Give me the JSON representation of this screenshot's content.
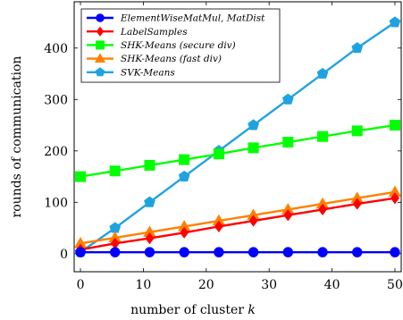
{
  "chart_data": {
    "type": "line",
    "xlabel": "number of cluster",
    "xlabel_var": "k",
    "ylabel": "rounds of communication",
    "xlim": [
      -1,
      51
    ],
    "ylim": [
      -35,
      490
    ],
    "xticks": [
      0,
      10,
      20,
      30,
      40,
      50
    ],
    "yticks": [
      0,
      100,
      200,
      300,
      400
    ],
    "legend_position": "top-left",
    "x": [
      0,
      5.5,
      11,
      16.5,
      22,
      27.5,
      33,
      38.5,
      44,
      50
    ],
    "series": [
      {
        "name": "ElementWiseMatMul, MatDist",
        "color": "#0000ff",
        "marker": "circle",
        "values": [
          3,
          3,
          3,
          3,
          3,
          3,
          3,
          3,
          3,
          3
        ]
      },
      {
        "name": "LabelSamples",
        "color": "#ff0000",
        "marker": "diamond",
        "values": [
          8,
          20,
          30,
          41,
          53,
          64,
          75,
          86,
          97,
          108
        ]
      },
      {
        "name": "SHK-Means (secure div)",
        "color": "#00ff00",
        "marker": "square",
        "values": [
          150,
          161,
          172,
          183,
          194,
          206,
          217,
          228,
          239,
          250
        ]
      },
      {
        "name": "SHK-Means (fast div)",
        "color": "#ff8000",
        "marker": "triangle",
        "values": [
          20,
          31,
          42,
          53,
          64,
          75,
          86,
          97,
          108,
          120
        ]
      },
      {
        "name": "SVK-Means",
        "color": "#1fa3e0",
        "marker": "pentagon",
        "values": [
          3,
          50,
          100,
          150,
          200,
          250,
          300,
          350,
          400,
          450
        ]
      }
    ]
  }
}
